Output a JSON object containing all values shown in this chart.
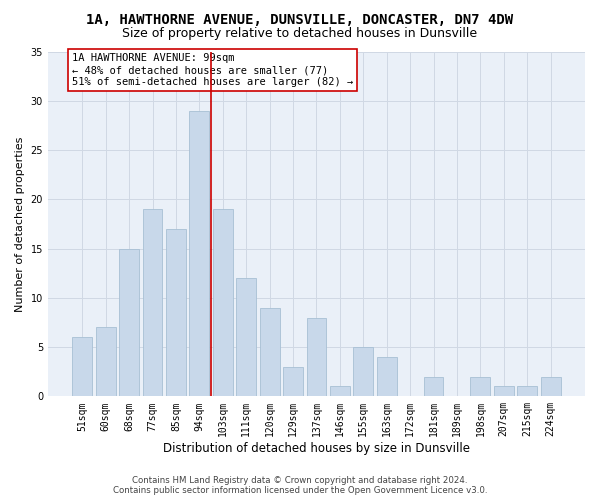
{
  "title": "1A, HAWTHORNE AVENUE, DUNSVILLE, DONCASTER, DN7 4DW",
  "subtitle": "Size of property relative to detached houses in Dunsville",
  "xlabel": "Distribution of detached houses by size in Dunsville",
  "ylabel": "Number of detached properties",
  "categories": [
    "51sqm",
    "60sqm",
    "68sqm",
    "77sqm",
    "85sqm",
    "94sqm",
    "103sqm",
    "111sqm",
    "120sqm",
    "129sqm",
    "137sqm",
    "146sqm",
    "155sqm",
    "163sqm",
    "172sqm",
    "181sqm",
    "189sqm",
    "198sqm",
    "207sqm",
    "215sqm",
    "224sqm"
  ],
  "values": [
    6,
    7,
    15,
    19,
    17,
    29,
    19,
    12,
    9,
    3,
    8,
    1,
    5,
    4,
    0,
    2,
    0,
    2,
    1,
    1,
    2
  ],
  "bar_color": "#c8d8ea",
  "bar_edge_color": "#a8c0d4",
  "property_line_color": "#cc0000",
  "annotation_text": "1A HAWTHORNE AVENUE: 99sqm\n← 48% of detached houses are smaller (77)\n51% of semi-detached houses are larger (82) →",
  "annotation_box_color": "white",
  "annotation_box_edge_color": "#cc0000",
  "ylim": [
    0,
    35
  ],
  "yticks": [
    0,
    5,
    10,
    15,
    20,
    25,
    30,
    35
  ],
  "grid_color": "#d0d8e4",
  "background_color": "#eaf0f8",
  "footer_line1": "Contains HM Land Registry data © Crown copyright and database right 2024.",
  "footer_line2": "Contains public sector information licensed under the Open Government Licence v3.0.",
  "title_fontsize": 10,
  "subtitle_fontsize": 9,
  "xlabel_fontsize": 8.5,
  "ylabel_fontsize": 8,
  "tick_fontsize": 7,
  "annotation_fontsize": 7.5
}
